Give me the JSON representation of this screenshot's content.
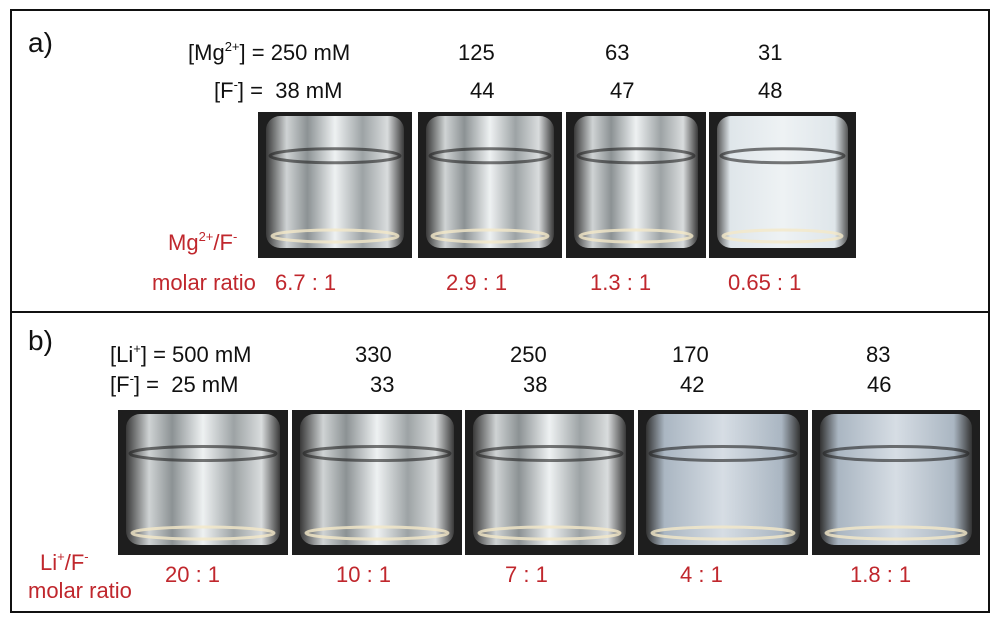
{
  "panel_a": {
    "label": "a)",
    "cation_row": {
      "prefix": "[Mg",
      "charge": "2+",
      "suffix": "] = 250 mM",
      "values": [
        125,
        63,
        31
      ]
    },
    "fluoride_row": {
      "prefix": "[F",
      "charge": "-",
      "suffix": "] =  38 mM",
      "values": [
        44,
        47,
        48
      ]
    },
    "ratio_label": {
      "cation": "Mg",
      "cation_charge": "2+",
      "separator": "/F",
      "anion_charge": "-",
      "line2": "molar ratio"
    },
    "ratios": [
      "6.7 : 1",
      "2.9 : 1",
      "1.3 : 1",
      "0.65 : 1"
    ]
  },
  "panel_b": {
    "label": "b)",
    "cation_row": {
      "prefix": "[Li",
      "charge": "+",
      "suffix": "] = 500 mM",
      "values": [
        330,
        250,
        170,
        83
      ]
    },
    "fluoride_row": {
      "prefix": "[F",
      "charge": "-",
      "suffix": "] =  25 mM",
      "values": [
        33,
        38,
        42,
        46
      ]
    },
    "ratio_label": {
      "cation": "Li",
      "cation_charge": "+",
      "separator": "/F",
      "anion_charge": "-",
      "line2": "molar ratio"
    },
    "ratios": [
      "20 : 1",
      "10 : 1",
      "7 : 1",
      "4 : 1",
      "1.8 : 1"
    ]
  }
}
